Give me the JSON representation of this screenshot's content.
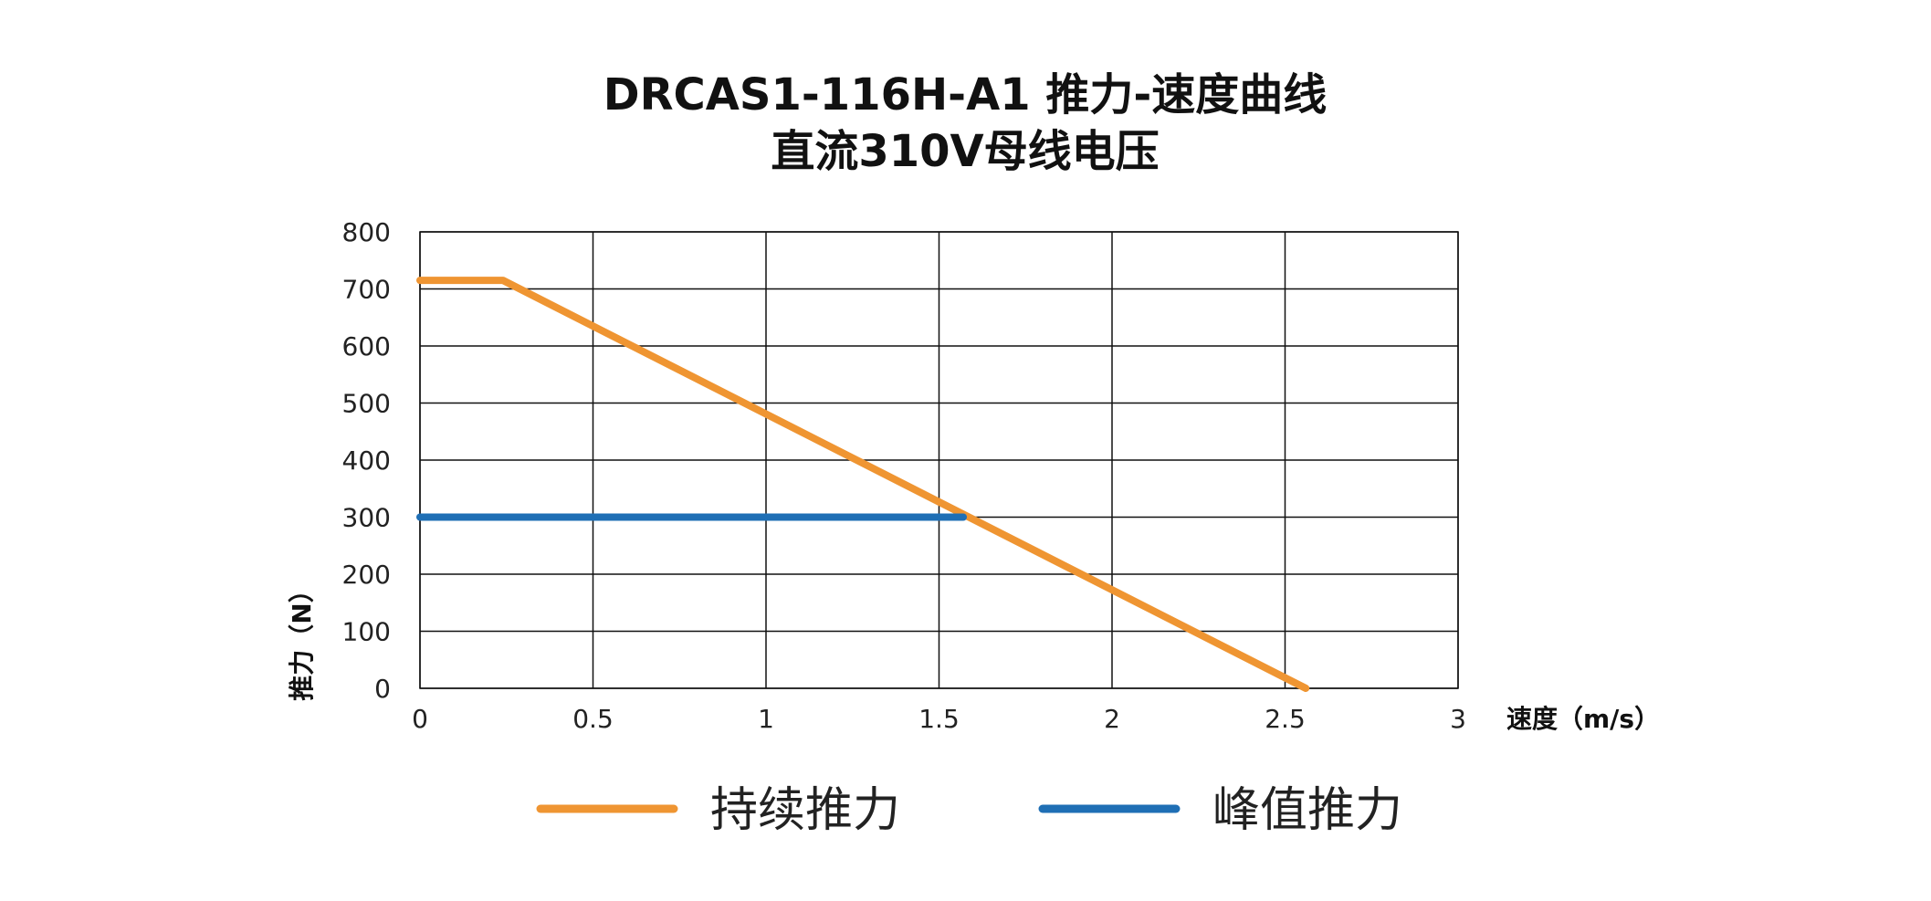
{
  "chart_data": {
    "type": "line",
    "title": "DRCAS1-116H-A1 推力-速度曲线",
    "subtitle": "直流310V母线电压",
    "xlabel": "速度（m/s）",
    "ylabel": "推力（N）",
    "xlim": [
      0,
      3
    ],
    "ylim": [
      0,
      800
    ],
    "xticks": [
      "0",
      "0.5",
      "1",
      "1.5",
      "2",
      "2.5",
      "3"
    ],
    "yticks": [
      "0",
      "100",
      "200",
      "300",
      "400",
      "500",
      "600",
      "700",
      "800"
    ],
    "grid": true,
    "legend_position": "bottom",
    "series": [
      {
        "name": "持续推力",
        "color": "#ef9532",
        "points": [
          [
            0,
            715
          ],
          [
            0.24,
            715
          ],
          [
            2.56,
            0
          ]
        ]
      },
      {
        "name": "峰值推力",
        "color": "#1f6fb5",
        "points": [
          [
            0,
            300
          ],
          [
            1.57,
            300
          ]
        ]
      }
    ]
  }
}
